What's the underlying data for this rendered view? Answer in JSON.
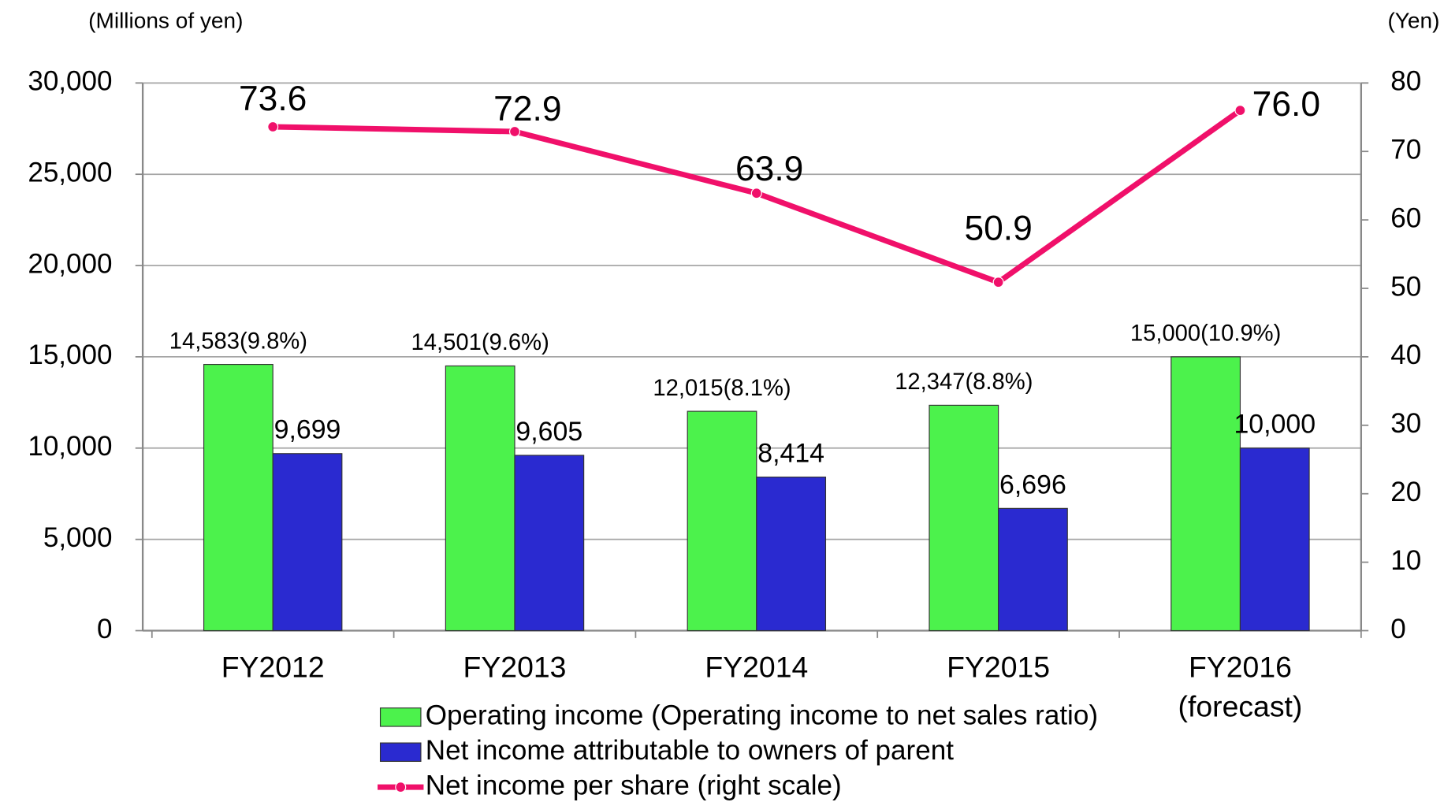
{
  "chart_data": {
    "type": "bar",
    "y_label": "(Millions of yen)",
    "y2_label": "(Yen)",
    "categories": [
      "FY2012",
      "FY2013",
      "FY2014",
      "FY2015",
      [
        "FY2016",
        "(forecast)"
      ]
    ],
    "ylim": [
      0,
      30000
    ],
    "yticks": [
      0,
      {
        "value": 5000,
        "label": "5,000"
      },
      {
        "value": 10000,
        "label": "10,000"
      },
      {
        "value": 15000,
        "label": "15,000"
      },
      {
        "value": 20000,
        "label": "20,000"
      },
      {
        "value": 25000,
        "label": "25,000"
      },
      {
        "value": 30000,
        "label": "30,000"
      }
    ],
    "y2lim": [
      0,
      80
    ],
    "y2ticks": [
      0,
      10,
      20,
      30,
      40,
      50,
      60,
      70,
      80
    ],
    "grid": true,
    "legend": "bottom",
    "series": [
      {
        "name": "Operating income (Operating income to net sales ratio)",
        "type": "bar",
        "color": "#4cf24c",
        "values": [
          14583,
          14501,
          12015,
          12347,
          15000
        ],
        "value_labels": [
          "14,583(9.8%)",
          "14,501(9.6%)",
          "12,015(8.1%)",
          "12,347(8.8%)",
          "15,000(10.9%)"
        ]
      },
      {
        "name": "Net income attributable to owners of parent",
        "type": "bar",
        "color": "#2a2ad0",
        "values": [
          9699,
          9605,
          8414,
          6696,
          10000
        ],
        "value_labels": [
          "9,699",
          "9,605",
          "8,414",
          "6,696",
          "10,000"
        ]
      },
      {
        "name": "Net income per share (right scale)",
        "type": "line",
        "axis": "y2",
        "color": "#f0106a",
        "values": [
          73.6,
          72.9,
          63.9,
          50.9,
          76.0
        ],
        "value_labels": [
          "73.6",
          "72.9",
          "63.9",
          "50.9",
          "76.0"
        ]
      }
    ]
  }
}
